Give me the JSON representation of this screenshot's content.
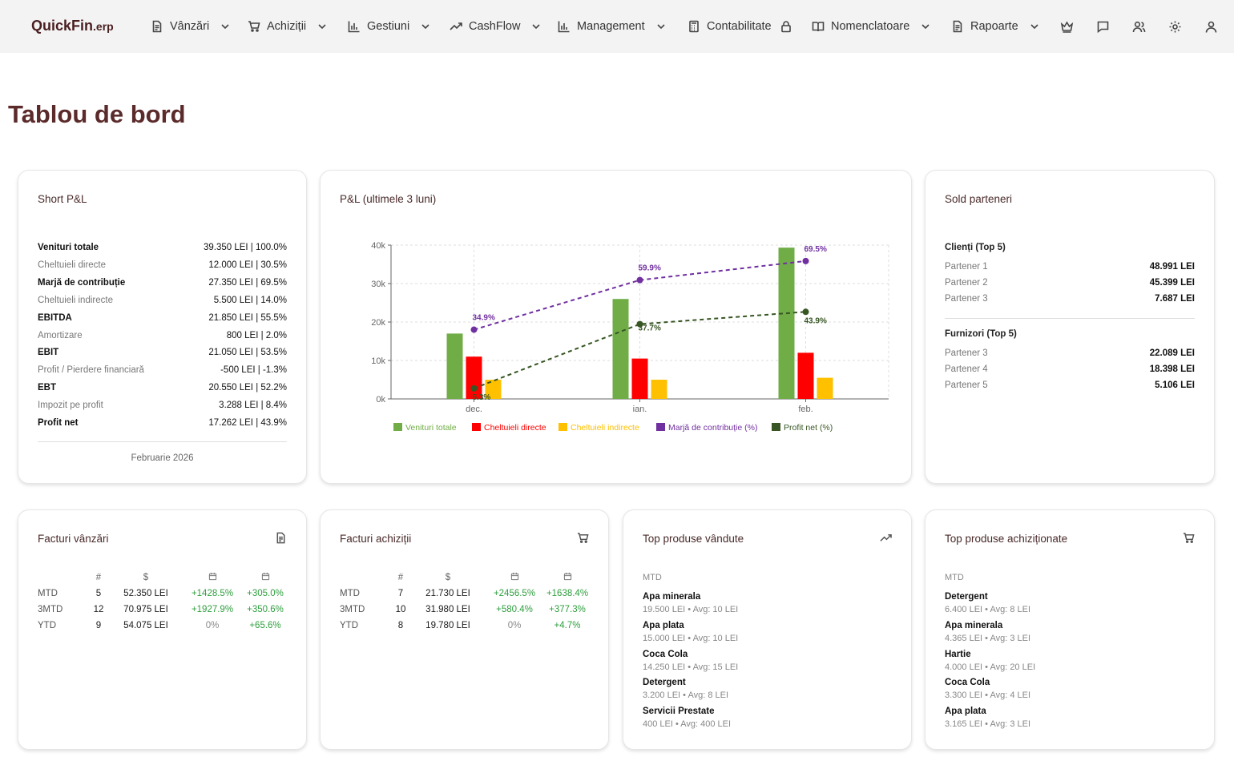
{
  "brand": {
    "name": "QuickFin",
    "suffix": ".erp"
  },
  "nav": [
    {
      "label": "Vânzări",
      "icon": "document-icon",
      "has_dropdown": true
    },
    {
      "label": "Achiziții",
      "icon": "cart-icon",
      "has_dropdown": true
    },
    {
      "label": "Gestiuni",
      "icon": "bar-chart-icon",
      "has_dropdown": true
    },
    {
      "label": "CashFlow",
      "icon": "trend-icon",
      "has_dropdown": true
    },
    {
      "label": "Management",
      "icon": "bar-chart-icon",
      "has_dropdown": true
    },
    {
      "label": "Contabilitate",
      "icon": "calculator-icon",
      "has_lock": true
    },
    {
      "label": "Nomenclatoare",
      "icon": "book-icon",
      "has_dropdown": true
    },
    {
      "label": "Rapoarte",
      "icon": "document-icon",
      "has_dropdown": true
    }
  ],
  "toolbar_icons": [
    "crown-icon",
    "chat-icon",
    "users-icon",
    "settings-icon",
    "user-icon"
  ],
  "page_title": "Tablou de bord",
  "short_pl": {
    "title": "Short P&L",
    "rows": [
      {
        "label": "Venituri totale",
        "value": "39.350 LEI | 100.0%",
        "bold": true
      },
      {
        "label": "Cheltuieli directe",
        "value": "12.000 LEI | 30.5%",
        "bold": false
      },
      {
        "label": "Marjă de contribuție",
        "value": "27.350 LEI | 69.5%",
        "bold": true
      },
      {
        "label": "Cheltuieli indirecte",
        "value": "5.500 LEI | 14.0%",
        "bold": false
      },
      {
        "label": "EBITDA",
        "value": "21.850 LEI | 55.5%",
        "bold": true
      },
      {
        "label": "Amortizare",
        "value": "800 LEI | 2.0%",
        "bold": false
      },
      {
        "label": "EBIT",
        "value": "21.050 LEI | 53.5%",
        "bold": true
      },
      {
        "label": "Profit / Pierdere financiară",
        "value": "-500 LEI | -1.3%",
        "bold": false
      },
      {
        "label": "EBT",
        "value": "20.550 LEI | 52.2%",
        "bold": true
      },
      {
        "label": "Impozit pe profit",
        "value": "3.288 LEI | 8.4%",
        "bold": false
      },
      {
        "label": "Profit net",
        "value": "17.262 LEI | 43.9%",
        "bold": true
      }
    ],
    "period": "Februarie 2026"
  },
  "pl_chart": {
    "title": "P&L (ultimele 3 luni)"
  },
  "chart_data": {
    "type": "bar",
    "categories": [
      "dec.",
      "ian.",
      "feb."
    ],
    "ylim": [
      0,
      40000
    ],
    "yticks": [
      "0k",
      "10k",
      "20k",
      "30k",
      "40k"
    ],
    "series": [
      {
        "name": "Venituri totale",
        "values": [
          17000,
          26000,
          39350
        ],
        "color": "#70ad47",
        "kind": "bar"
      },
      {
        "name": "Cheltuieli directe",
        "values": [
          11000,
          10500,
          12000
        ],
        "color": "#ff0000",
        "kind": "bar"
      },
      {
        "name": "Cheltuieli indirecte",
        "values": [
          5000,
          5000,
          5500
        ],
        "color": "#ffc000",
        "kind": "bar"
      },
      {
        "name": "Marjă de contribuție (%)",
        "values": [
          34.9,
          59.9,
          69.5
        ],
        "labels": [
          "34.9%",
          "59.9%",
          "69.5%"
        ],
        "color": "#7030a0",
        "kind": "line"
      },
      {
        "name": "Profit net (%)",
        "values": [
          5.3,
          37.7,
          43.9
        ],
        "labels": [
          "5.3%",
          "37.7%",
          "43.9%"
        ],
        "color": "#375623",
        "kind": "line"
      }
    ],
    "grid": true,
    "legend": "bottom"
  },
  "sold_parteneri": {
    "title": "Sold parteneri",
    "clients_title": "Clienți (Top 5)",
    "clients": [
      {
        "name": "Partener 1",
        "value": "48.991 LEI"
      },
      {
        "name": "Partener 2",
        "value": "45.399 LEI"
      },
      {
        "name": "Partener 3",
        "value": "7.687 LEI"
      }
    ],
    "suppliers_title": "Furnizori (Top 5)",
    "suppliers": [
      {
        "name": "Partener 3",
        "value": "22.089 LEI"
      },
      {
        "name": "Partener 4",
        "value": "18.398 LEI"
      },
      {
        "name": "Partener 5",
        "value": "5.106 LEI"
      }
    ]
  },
  "facturi_vanzari": {
    "title": "Facturi vânzări",
    "headers": [
      "#",
      "$"
    ],
    "rows": [
      {
        "period": "MTD",
        "count": "5",
        "amount": "52.350 LEI",
        "c1": "+1428.5%",
        "c2": "+305.0%"
      },
      {
        "period": "3MTD",
        "count": "12",
        "amount": "70.975 LEI",
        "c1": "+1927.9%",
        "c2": "+350.6%"
      },
      {
        "period": "YTD",
        "count": "9",
        "amount": "54.075 LEI",
        "c1": "0%",
        "c2": "+65.6%"
      }
    ]
  },
  "facturi_achizitii": {
    "title": "Facturi achiziții",
    "headers": [
      "#",
      "$"
    ],
    "rows": [
      {
        "period": "MTD",
        "count": "7",
        "amount": "21.730 LEI",
        "c1": "+2456.5%",
        "c2": "+1638.4%"
      },
      {
        "period": "3MTD",
        "count": "10",
        "amount": "31.980 LEI",
        "c1": "+580.4%",
        "c2": "+377.3%"
      },
      {
        "period": "YTD",
        "count": "8",
        "amount": "19.780 LEI",
        "c1": "0%",
        "c2": "+4.7%"
      }
    ]
  },
  "top_vandute": {
    "title": "Top produse vândute",
    "period": "MTD",
    "items": [
      {
        "name": "Apa minerala",
        "detail": "19.500 LEI • Avg: 10 LEI"
      },
      {
        "name": "Apa plata",
        "detail": "15.000 LEI • Avg: 10 LEI"
      },
      {
        "name": "Coca Cola",
        "detail": "14.250 LEI • Avg: 15 LEI"
      },
      {
        "name": "Detergent",
        "detail": "3.200 LEI • Avg: 8 LEI"
      },
      {
        "name": "Servicii Prestate",
        "detail": "400 LEI • Avg: 400 LEI"
      }
    ]
  },
  "top_achizitionate": {
    "title": "Top produse achiziționate",
    "period": "MTD",
    "items": [
      {
        "name": "Detergent",
        "detail": "6.400 LEI • Avg: 8 LEI"
      },
      {
        "name": "Apa minerala",
        "detail": "4.365 LEI • Avg: 3 LEI"
      },
      {
        "name": "Hartie",
        "detail": "4.000 LEI • Avg: 20 LEI"
      },
      {
        "name": "Coca Cola",
        "detail": "3.300 LEI • Avg: 4 LEI"
      },
      {
        "name": "Apa plata",
        "detail": "3.165 LEI • Avg: 3 LEI"
      }
    ]
  }
}
